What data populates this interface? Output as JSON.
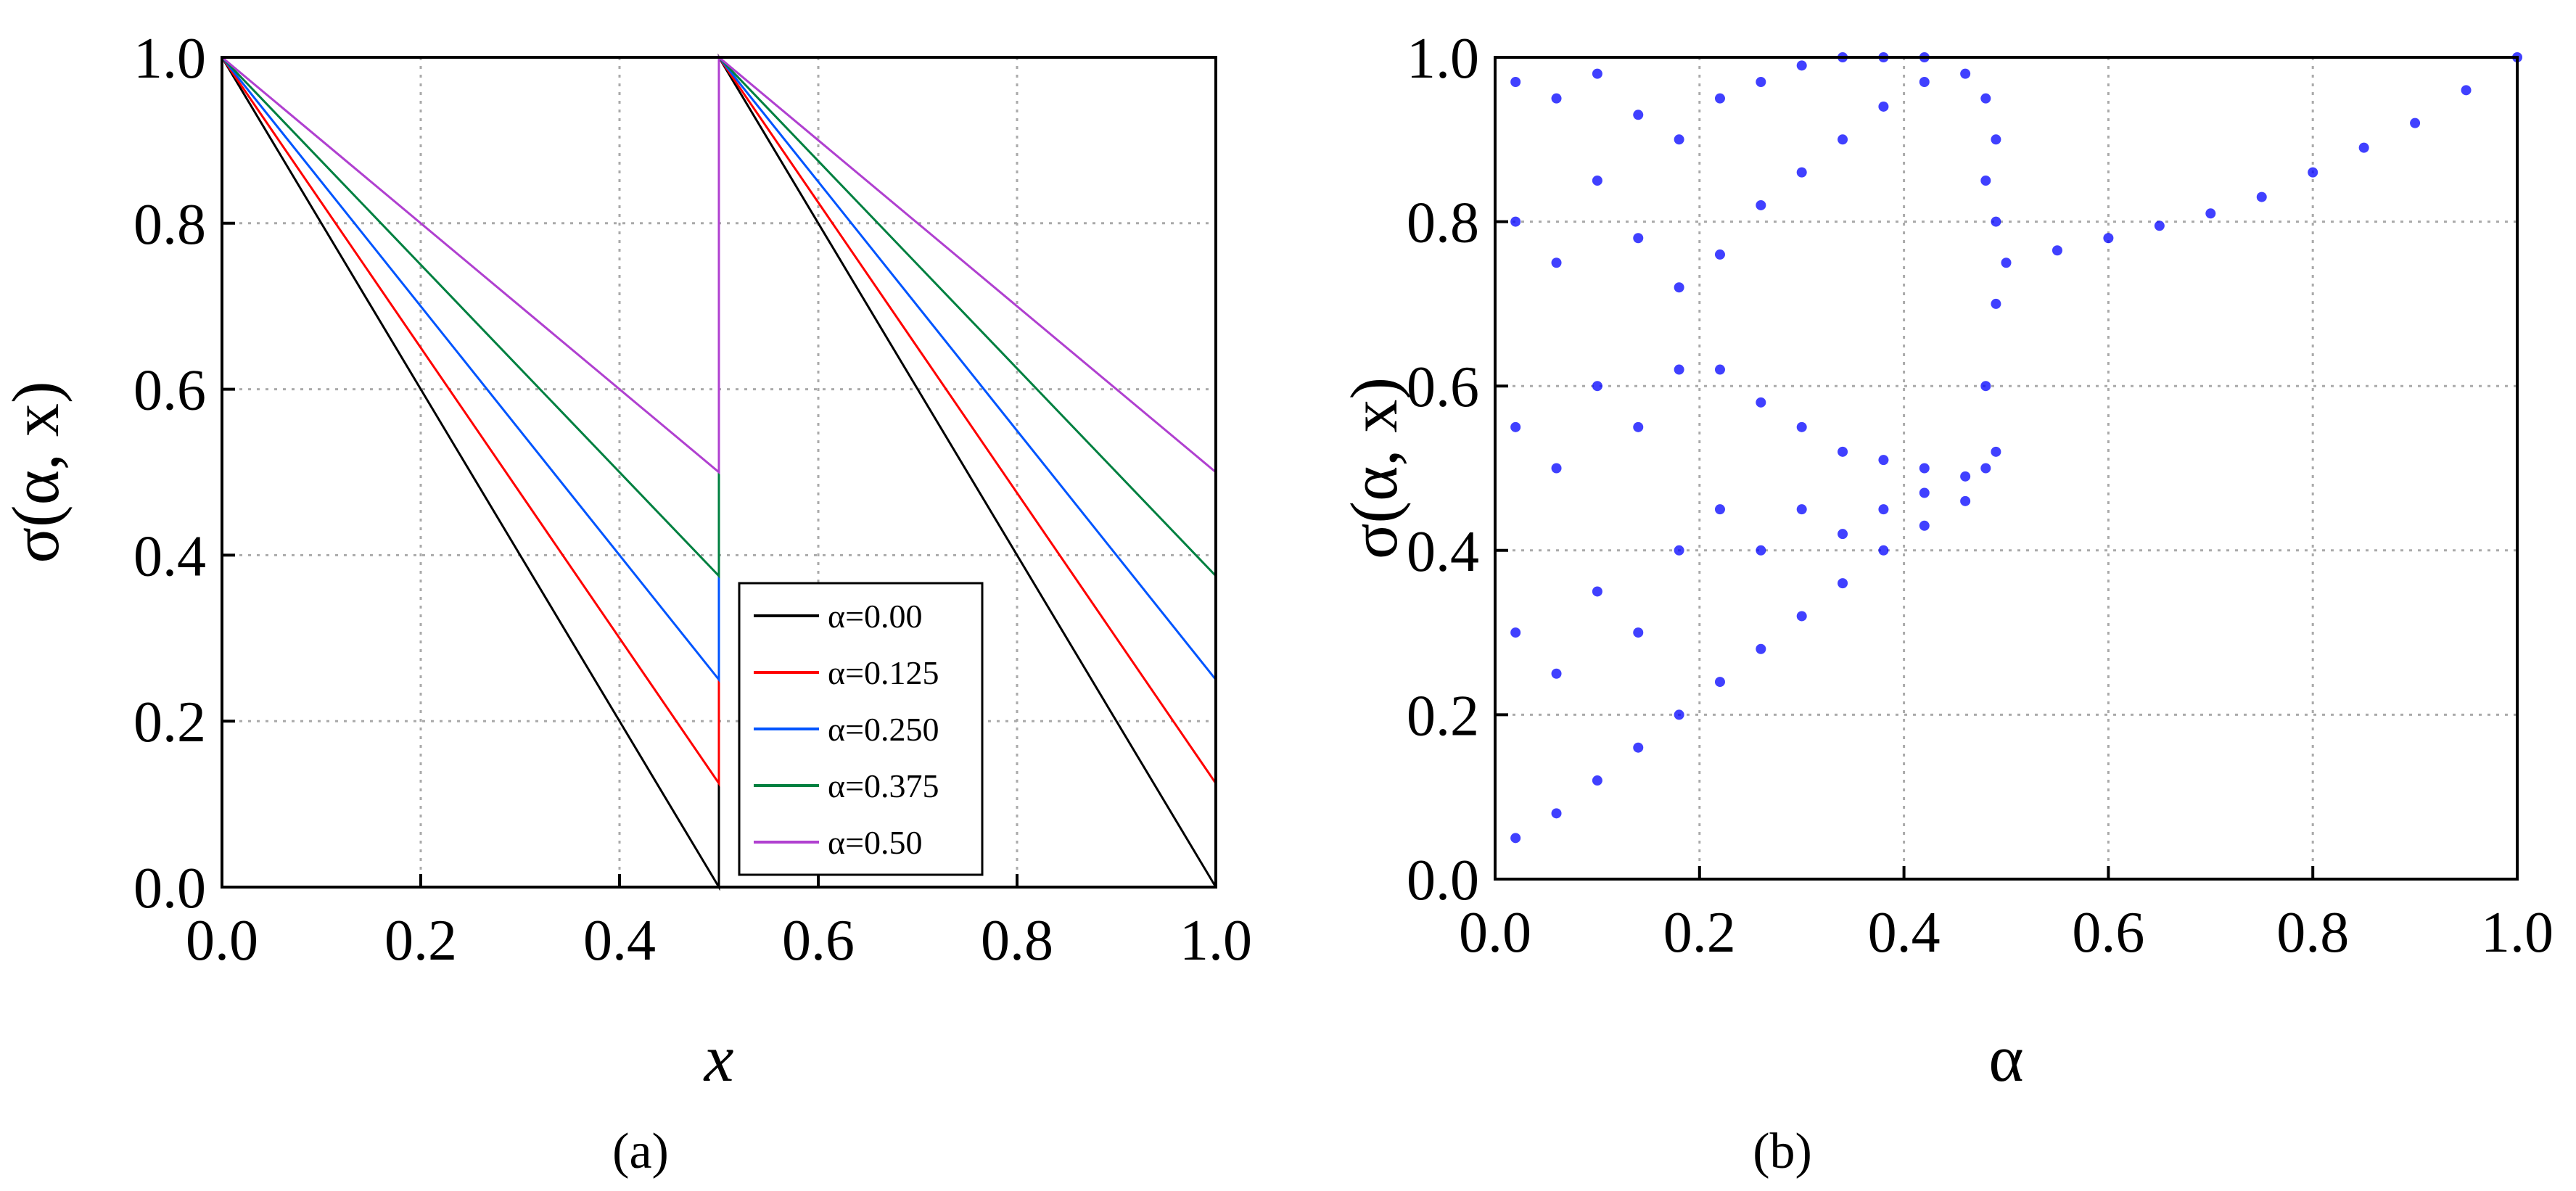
{
  "chart_data": [
    {
      "type": "line",
      "caption": "(a)",
      "x_label": "x",
      "y_label": "σ(α, x)",
      "x": [
        0,
        0.5,
        0.5,
        1.0
      ],
      "series": [
        {
          "name": "α=0.00",
          "color": "#000000",
          "values": [
            1.0,
            0,
            1.0,
            0
          ]
        },
        {
          "name": "α=0.125",
          "color": "#ff0000",
          "values": [
            1.0,
            0.125,
            1.0,
            0.125
          ]
        },
        {
          "name": "α=0.250",
          "color": "#0055ff",
          "values": [
            1.0,
            0.25,
            1.0,
            0.25
          ]
        },
        {
          "name": "α=0.375",
          "color": "#008040",
          "values": [
            1.0,
            0.375,
            1.0,
            0.375
          ]
        },
        {
          "name": "α=0.50",
          "color": "#b040d0",
          "values": [
            1.0,
            0.5,
            1.0,
            0.5
          ]
        }
      ],
      "xlim": [
        0,
        1.0
      ],
      "ylim": [
        0,
        1.0
      ],
      "xticks": [
        {
          "value": 0,
          "label": "0.0"
        },
        0.2,
        0.4,
        0.6,
        0.8,
        {
          "value": 1.0,
          "label": "1.0"
        }
      ],
      "yticks": [
        {
          "value": 0,
          "label": "0.0"
        },
        0.2,
        0.4,
        0.6,
        0.8,
        {
          "value": 1.0,
          "label": "1.0"
        }
      ],
      "grid": true,
      "legend": "lower-right"
    },
    {
      "type": "scatter",
      "caption": "(b)",
      "x_label": "α",
      "y_label": "σ(α, x)",
      "color": "#0000ff",
      "x": [
        0.02,
        0.02,
        0.02,
        0.02,
        0.02,
        0.06,
        0.06,
        0.06,
        0.06,
        0.06,
        0.1,
        0.1,
        0.1,
        0.1,
        0.1,
        0.14,
        0.14,
        0.14,
        0.14,
        0.14,
        0.18,
        0.18,
        0.18,
        0.18,
        0.18,
        0.22,
        0.22,
        0.22,
        0.22,
        0.22,
        0.26,
        0.26,
        0.26,
        0.26,
        0.26,
        0.3,
        0.3,
        0.3,
        0.3,
        0.3,
        0.34,
        0.34,
        0.34,
        0.34,
        0.34,
        0.38,
        0.38,
        0.38,
        0.38,
        0.38,
        0.42,
        0.42,
        0.42,
        0.42,
        0.42,
        0.46,
        0.46,
        0.46,
        0.48,
        0.48,
        0.48,
        0.48,
        0.49,
        0.49,
        0.49,
        0.49,
        0.5,
        0.55,
        0.6,
        0.65,
        0.7,
        0.75,
        0.8,
        0.85,
        0.9,
        0.95,
        1.0
      ],
      "values": [
        0.05,
        0.3,
        0.55,
        0.8,
        0.97,
        0.08,
        0.25,
        0.5,
        0.75,
        0.95,
        0.12,
        0.35,
        0.6,
        0.85,
        0.98,
        0.16,
        0.3,
        0.55,
        0.78,
        0.93,
        0.2,
        0.4,
        0.62,
        0.72,
        0.9,
        0.24,
        0.45,
        0.62,
        0.76,
        0.95,
        0.28,
        0.4,
        0.58,
        0.82,
        0.97,
        0.32,
        0.45,
        0.55,
        0.86,
        0.99,
        0.36,
        0.42,
        0.52,
        0.9,
        1.0,
        0.4,
        0.45,
        0.51,
        0.94,
        1.0,
        0.43,
        0.47,
        0.5,
        0.97,
        1.0,
        0.46,
        0.49,
        0.98,
        0.5,
        0.6,
        0.85,
        0.95,
        0.52,
        0.7,
        0.8,
        0.9,
        0.75,
        0.765,
        0.78,
        0.795,
        0.81,
        0.83,
        0.86,
        0.89,
        0.92,
        0.96,
        1.0
      ],
      "xlim": [
        0,
        1.0
      ],
      "ylim": [
        0,
        1.0
      ],
      "xticks": [
        {
          "value": 0,
          "label": "0.0"
        },
        0.2,
        0.4,
        0.6,
        0.8,
        {
          "value": 1.0,
          "label": "1.0"
        }
      ],
      "yticks": [
        {
          "value": 0,
          "label": "0.0"
        },
        0.2,
        0.4,
        0.6,
        0.8,
        {
          "value": 1.0,
          "label": "1.0"
        }
      ],
      "grid": true
    }
  ]
}
